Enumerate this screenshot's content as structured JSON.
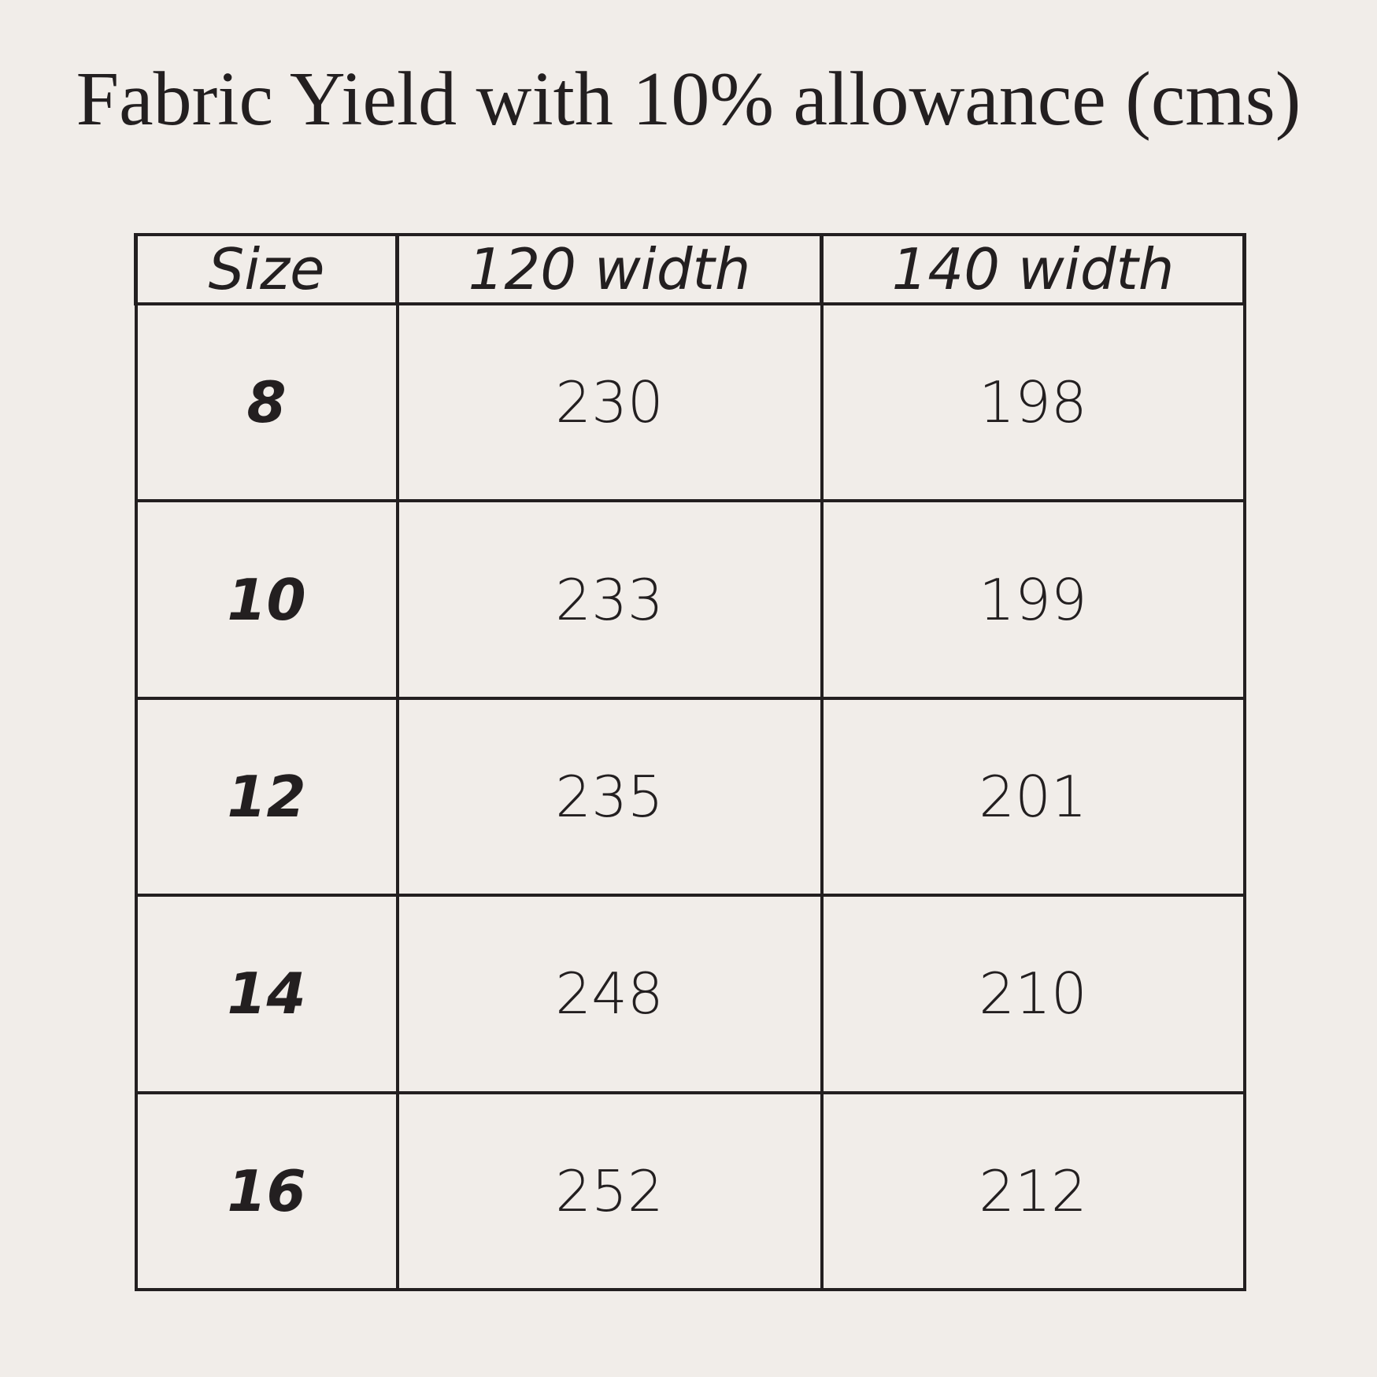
{
  "title": "Fabric Yield with 10% allowance (cms)",
  "table": {
    "headers": [
      "Size",
      "120 width",
      "140 width"
    ],
    "rows": [
      [
        "8",
        "230",
        "198"
      ],
      [
        "10",
        "233",
        "199"
      ],
      [
        "12",
        "235",
        "201"
      ],
      [
        "14",
        "248",
        "210"
      ],
      [
        "16",
        "252",
        "212"
      ]
    ]
  },
  "colors": {
    "background": "#f1ede9",
    "text": "#231f20"
  }
}
